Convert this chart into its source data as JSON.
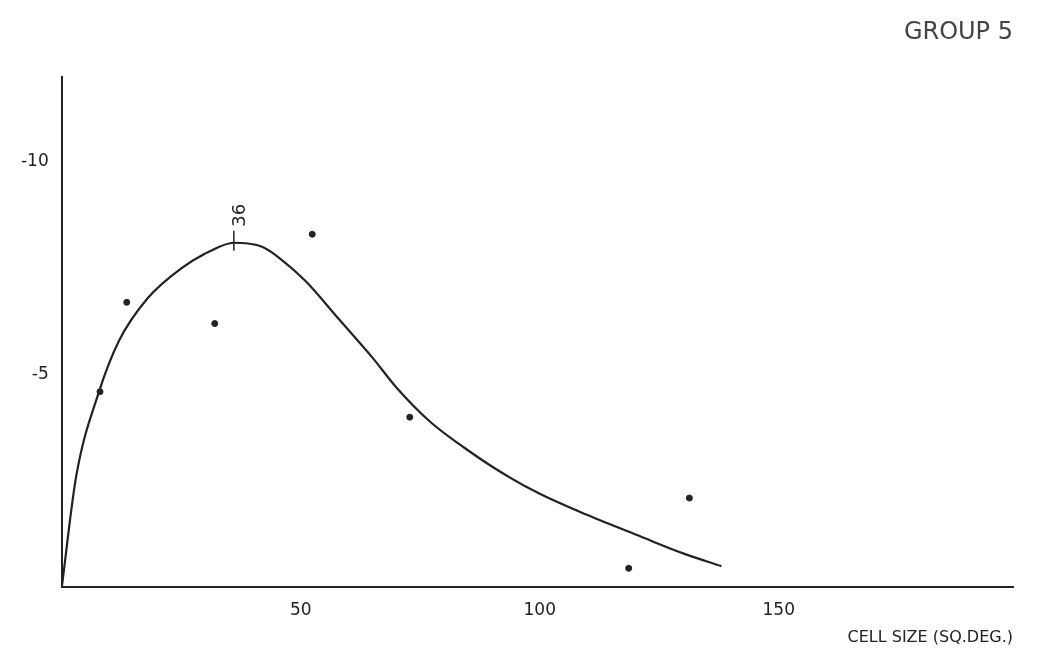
{
  "chart_data": {
    "type": "scatter",
    "title": "GROUP 5",
    "xlabel": "CELL SIZE (SQ.DEG.)",
    "series": [
      {
        "type": "line",
        "color": "#222222",
        "marker": "none",
        "x": [
          0,
          3,
          7.8,
          12,
          18,
          25,
          31,
          36,
          42,
          46,
          51,
          58,
          65,
          70,
          77,
          84,
          92,
          100,
          110,
          121,
          130,
          138
        ],
        "values": [
          0,
          -2.6,
          -4.6,
          -5.8,
          -6.8,
          -7.5,
          -7.9,
          -8.1,
          -8.0,
          -7.7,
          -7.2,
          -6.3,
          -5.4,
          -4.7,
          -3.9,
          -3.3,
          -2.7,
          -2.2,
          -1.7,
          -1.2,
          -0.8,
          -0.5
        ]
      },
      {
        "type": "scatter",
        "color": "#222222",
        "marker": "circle",
        "x": [
          8,
          13.6,
          32,
          52.4,
          72.8,
          118.6,
          131.3
        ],
        "values": [
          -4.6,
          -6.7,
          -6.2,
          -8.3,
          -4.0,
          -0.45,
          -2.1
        ]
      }
    ],
    "annotations": [
      {
        "text": "36",
        "x": 36,
        "y": -8.1
      }
    ],
    "xlim": [
      0,
      199
    ],
    "xticks": [
      50,
      100,
      150
    ],
    "ylim": [
      0,
      -12
    ],
    "yticks": [
      -5,
      -10
    ],
    "grid": false,
    "legend": false
  }
}
